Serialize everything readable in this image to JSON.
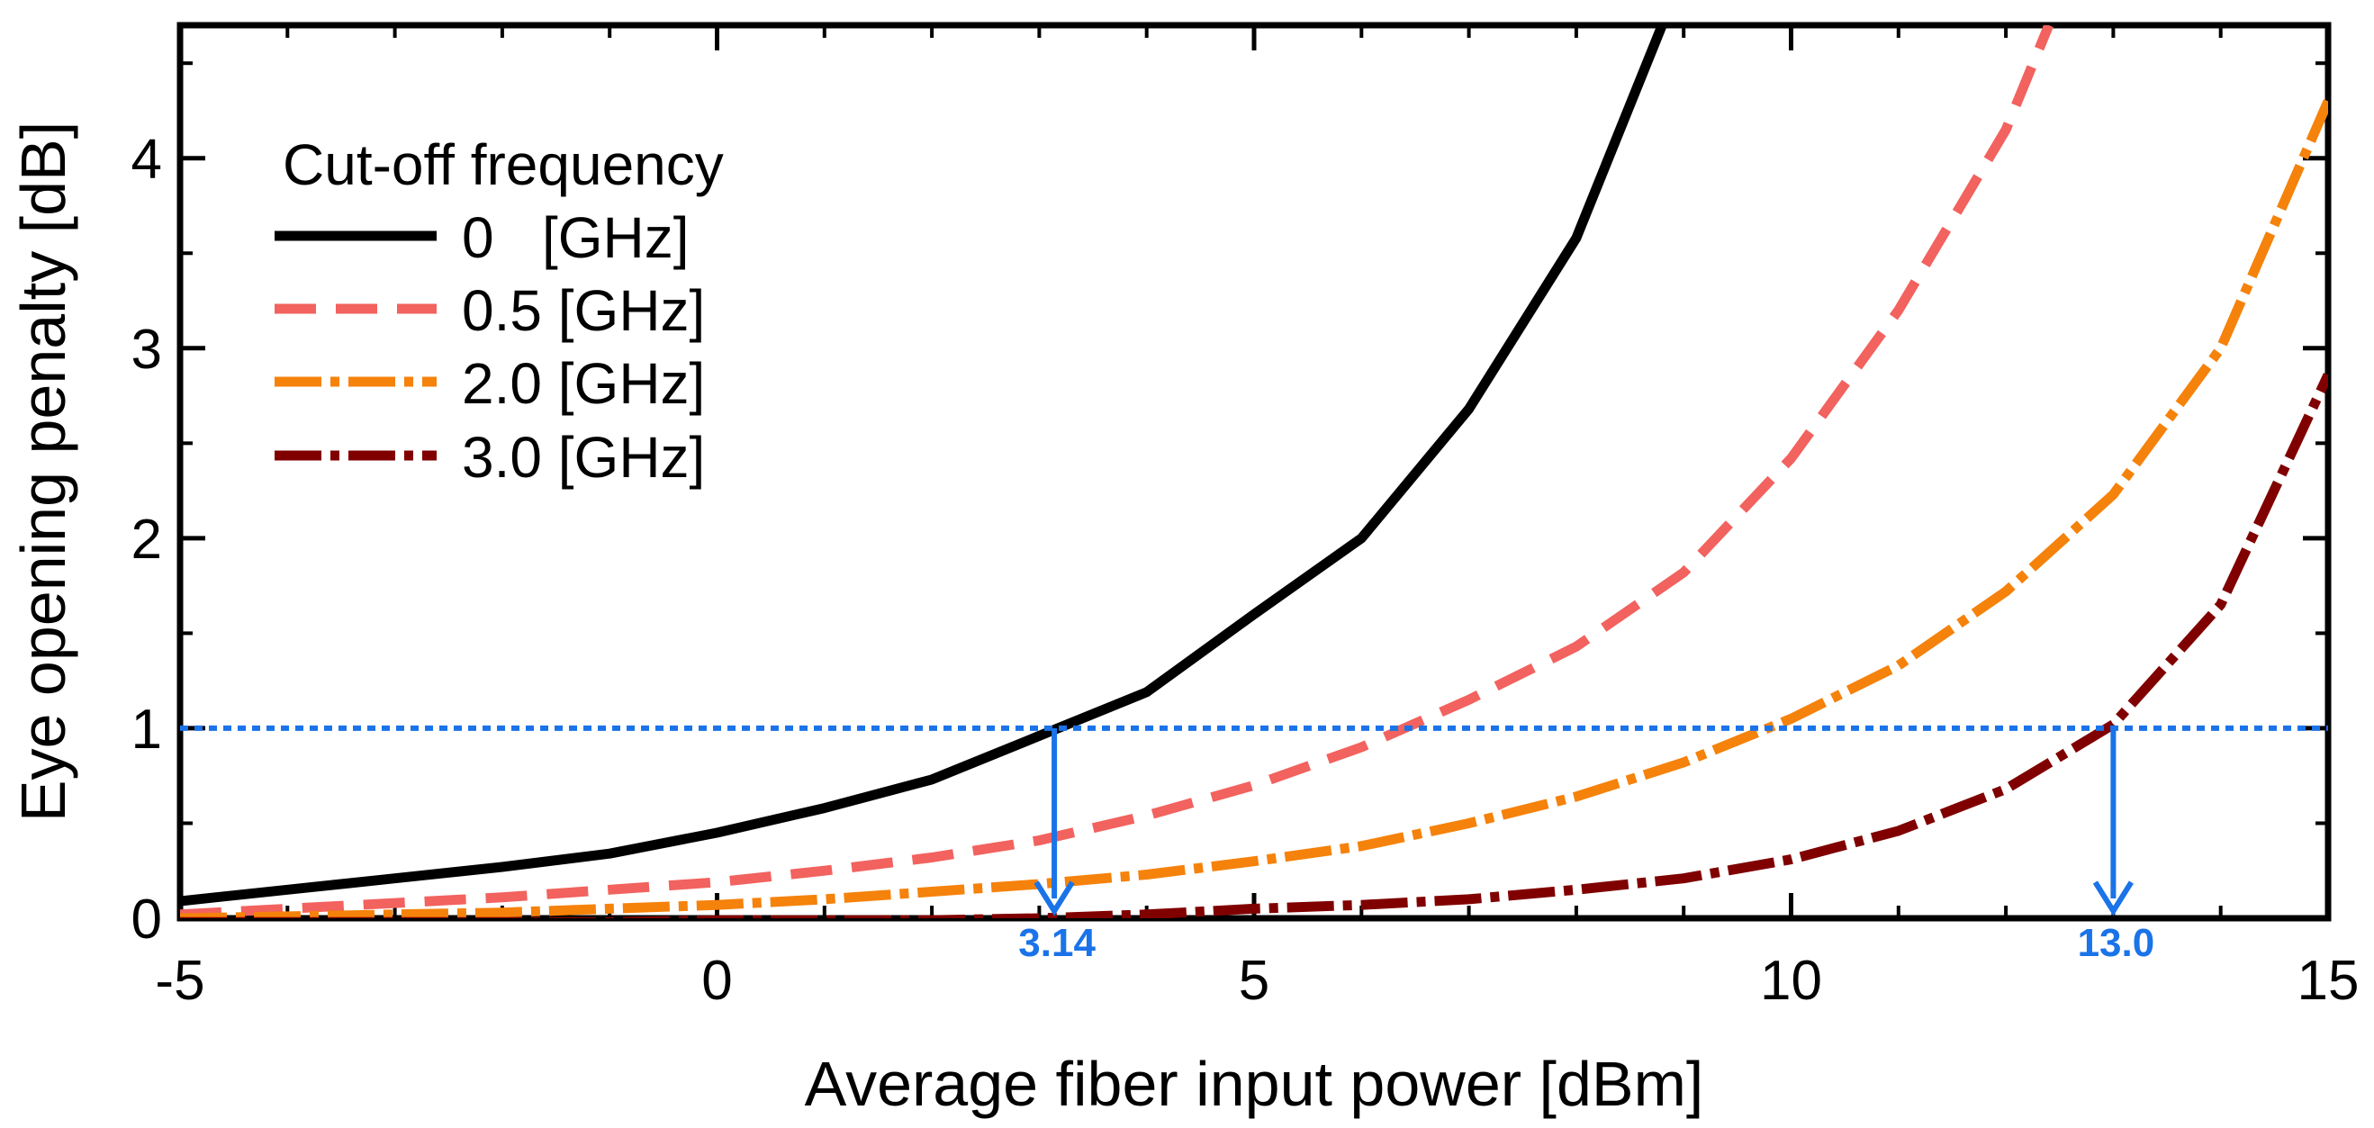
{
  "chart_data": {
    "type": "line",
    "xlabel": "Average fiber input power [dBm]",
    "ylabel": "Eye opening penalty [dB]",
    "xlim": [
      -5,
      15
    ],
    "ylim": [
      0,
      4.7
    ],
    "x_ticks": [
      -5,
      0,
      5,
      10,
      15
    ],
    "x_tick_labels": [
      "-5",
      "0",
      "5",
      "10",
      "15"
    ],
    "y_ticks": [
      0,
      1,
      2,
      3,
      4
    ],
    "y_tick_labels": [
      "0",
      "1",
      "2",
      "3",
      "4"
    ],
    "legend_title": "Cut-off frequency",
    "legend_position": "top-left",
    "series": [
      {
        "name": "0   [GHz]",
        "color": "#000000",
        "style": "solid",
        "x": [
          -5,
          -4,
          -3,
          -2,
          -1,
          0,
          1,
          2,
          3,
          4,
          5,
          6,
          7,
          8,
          8.8
        ],
        "y": [
          0.09,
          0.15,
          0.21,
          0.27,
          0.34,
          0.45,
          0.58,
          0.73,
          0.96,
          1.19,
          1.6,
          2.0,
          2.68,
          3.58,
          4.7
        ]
      },
      {
        "name": "0.5 [GHz]",
        "color": "#f2625e",
        "style": "dashed",
        "x": [
          -5,
          -4,
          -3,
          -2,
          -1,
          0,
          1,
          2,
          3,
          4,
          5,
          6,
          7,
          8,
          9,
          10,
          11,
          12,
          12.4
        ],
        "y": [
          0.02,
          0.05,
          0.08,
          0.11,
          0.15,
          0.19,
          0.25,
          0.32,
          0.41,
          0.54,
          0.7,
          0.9,
          1.15,
          1.43,
          1.82,
          2.42,
          3.2,
          4.15,
          4.7
        ]
      },
      {
        "name": "2.0 [GHz]",
        "color": "#f5820b",
        "style": "dashdot",
        "x": [
          -5,
          -4,
          -3,
          -2,
          -1,
          0,
          1,
          2,
          3,
          4,
          5,
          6,
          7,
          8,
          9,
          10,
          11,
          12,
          13,
          14,
          15
        ],
        "y": [
          0.0,
          0.01,
          0.02,
          0.03,
          0.05,
          0.07,
          0.1,
          0.14,
          0.18,
          0.23,
          0.3,
          0.38,
          0.5,
          0.64,
          0.82,
          1.05,
          1.33,
          1.72,
          2.23,
          3.0,
          4.3
        ]
      },
      {
        "name": "3.0 [GHz]",
        "color": "#800000",
        "style": "dashdot",
        "x": [
          -5,
          -4,
          -3,
          -2,
          -1,
          0,
          1,
          2,
          3,
          4,
          5,
          6,
          7,
          8,
          9,
          10,
          11,
          12,
          13,
          14,
          15
        ],
        "y": [
          -0.02,
          -0.02,
          -0.02,
          -0.02,
          -0.02,
          -0.01,
          -0.01,
          -0.01,
          0.0,
          0.02,
          0.05,
          0.07,
          0.1,
          0.15,
          0.21,
          0.31,
          0.46,
          0.68,
          1.02,
          1.65,
          2.86
        ]
      }
    ],
    "reference_line": {
      "y": 1,
      "color": "#1a73e8",
      "style": "dotted"
    },
    "annotations": [
      {
        "label": "3.14",
        "x": 3.14,
        "y_from": 1,
        "color": "#1a73e8"
      },
      {
        "label": "13.0",
        "x": 13.0,
        "y_from": 1,
        "color": "#1a73e8"
      }
    ]
  }
}
